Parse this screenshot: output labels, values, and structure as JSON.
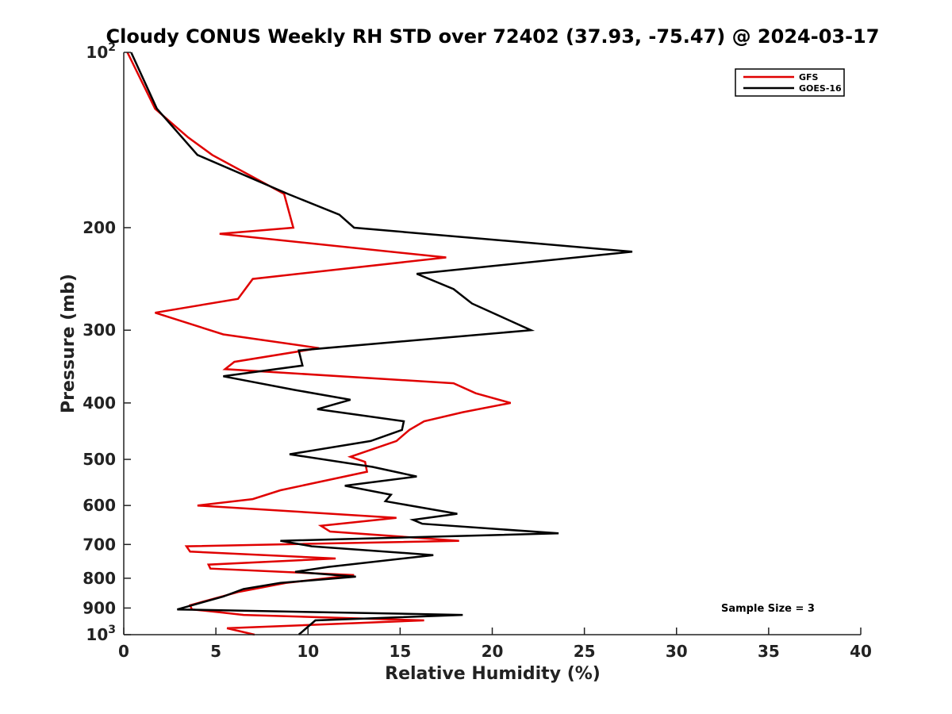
{
  "chart_data": {
    "type": "line",
    "title": "Cloudy CONUS Weekly RH STD over 72402 (37.93, -75.47) @ 2024-03-17",
    "xlabel": "Relative Humidity (%)",
    "ylabel": "Pressure (mb)",
    "xlim": [
      0,
      40
    ],
    "ylim": [
      100,
      1000
    ],
    "y_scale": "log",
    "y_reversed": true,
    "x_ticks": [
      "0",
      "5",
      "10",
      "15",
      "20",
      "25",
      "30",
      "35",
      "40"
    ],
    "y_ticks": [
      {
        "value": 100,
        "label": "10",
        "sup": "2"
      },
      {
        "value": 200,
        "label": "200"
      },
      {
        "value": 300,
        "label": "300"
      },
      {
        "value": 400,
        "label": "400"
      },
      {
        "value": 500,
        "label": "500"
      },
      {
        "value": 600,
        "label": "600"
      },
      {
        "value": 700,
        "label": "700"
      },
      {
        "value": 800,
        "label": "800"
      },
      {
        "value": 900,
        "label": "900"
      },
      {
        "value": 1000,
        "label": "10",
        "sup": "3"
      }
    ],
    "grid": false,
    "legend_position": "top-right",
    "annotation": "Sample Size = 3",
    "series": [
      {
        "name": "GFS",
        "color": "#e00000",
        "points": [
          [
            0.2,
            100
          ],
          [
            1.7,
            125
          ],
          [
            3.5,
            140
          ],
          [
            4.8,
            150
          ],
          [
            8.7,
            175
          ],
          [
            9.2,
            200
          ],
          [
            5.2,
            205
          ],
          [
            17.5,
            225
          ],
          [
            7,
            245
          ],
          [
            6.2,
            265
          ],
          [
            1.7,
            280
          ],
          [
            5.4,
            305
          ],
          [
            10.6,
            322
          ],
          [
            6,
            340
          ],
          [
            5.5,
            350
          ],
          [
            17.9,
            370
          ],
          [
            19.1,
            385
          ],
          [
            21,
            400
          ],
          [
            18.4,
            415
          ],
          [
            16.3,
            430
          ],
          [
            15.5,
            445
          ],
          [
            14.8,
            465
          ],
          [
            12.3,
            495
          ],
          [
            13.1,
            505
          ],
          [
            13.2,
            525
          ],
          [
            8.5,
            565
          ],
          [
            7,
            585
          ],
          [
            4,
            600
          ],
          [
            14.8,
            630
          ],
          [
            10.7,
            650
          ],
          [
            11.2,
            665
          ],
          [
            18.2,
            690
          ],
          [
            3.4,
            705
          ],
          [
            3.6,
            720
          ],
          [
            11.5,
            740
          ],
          [
            4.6,
            758
          ],
          [
            4.7,
            770
          ],
          [
            12.5,
            790
          ],
          [
            8.8,
            815
          ],
          [
            6.2,
            845
          ],
          [
            3.6,
            890
          ],
          [
            3.7,
            905
          ],
          [
            5.2,
            915
          ],
          [
            6.5,
            925
          ],
          [
            16.3,
            945
          ],
          [
            5.6,
            975
          ],
          [
            7.1,
            1000
          ]
        ]
      },
      {
        "name": "GOES-16",
        "color": "#000000",
        "points": [
          [
            0.4,
            100
          ],
          [
            1.8,
            125
          ],
          [
            4,
            150
          ],
          [
            8.9,
            175
          ],
          [
            11.7,
            190
          ],
          [
            12.5,
            200
          ],
          [
            27.6,
            220
          ],
          [
            15.9,
            240
          ],
          [
            17.9,
            255
          ],
          [
            18.9,
            270
          ],
          [
            22.1,
            300
          ],
          [
            9.5,
            325
          ],
          [
            9.6,
            335
          ],
          [
            9.7,
            345
          ],
          [
            5.4,
            360
          ],
          [
            9.3,
            380
          ],
          [
            12.3,
            395
          ],
          [
            10.5,
            410
          ],
          [
            15.2,
            430
          ],
          [
            15.1,
            445
          ],
          [
            13.4,
            465
          ],
          [
            9,
            490
          ],
          [
            13.5,
            515
          ],
          [
            15.9,
            535
          ],
          [
            12,
            555
          ],
          [
            14.5,
            575
          ],
          [
            14.2,
            590
          ],
          [
            18.1,
            620
          ],
          [
            15.7,
            635
          ],
          [
            16.2,
            645
          ],
          [
            23.6,
            670
          ],
          [
            8.5,
            690
          ],
          [
            10.2,
            705
          ],
          [
            16.8,
            730
          ],
          [
            11.1,
            765
          ],
          [
            9.3,
            780
          ],
          [
            12.6,
            795
          ],
          [
            8.5,
            815
          ],
          [
            6.5,
            835
          ],
          [
            5.4,
            860
          ],
          [
            2.9,
            905
          ],
          [
            18.4,
            925
          ],
          [
            10.4,
            945
          ],
          [
            9.5,
            1000
          ]
        ]
      }
    ]
  }
}
